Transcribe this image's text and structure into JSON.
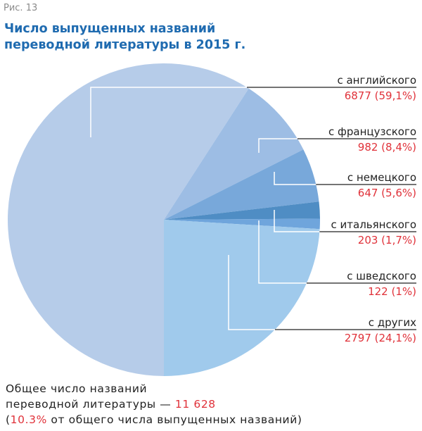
{
  "figure_label": "Рис. 13",
  "chart_data": {
    "type": "pie",
    "title": "Число выпущенных названий переводной литературы в 2015 г.",
    "slices": [
      {
        "name": "с английского",
        "value": 6877,
        "label": "6877 (59,1%)",
        "percent": 59.1,
        "color": "#b6cce9"
      },
      {
        "name": "с французского",
        "value": 982,
        "label": "982 (8,4%)",
        "percent": 8.4,
        "color": "#9dbde4"
      },
      {
        "name": "с немецкого",
        "value": 647,
        "label": "647 (5,6%)",
        "percent": 5.6,
        "color": "#78a8da"
      },
      {
        "name": "с итальянского",
        "value": 203,
        "label": "203 (1,7%)",
        "percent": 1.7,
        "color": "#4f8dc4"
      },
      {
        "name": "с шведского",
        "value": 122,
        "label": "122 (1%)",
        "percent": 1.0,
        "color": "#6fa5dc"
      },
      {
        "name": "с других",
        "value": 2797,
        "label": "2797 (24,1%)",
        "percent": 24.1,
        "color": "#a0caec"
      }
    ]
  },
  "footer": {
    "line1": "Общее число названий",
    "line2": "переводной литературы — ",
    "total": "11 628",
    "open": "(",
    "share": "10.3%",
    "rest": " от общего числа выпущенных названий)"
  }
}
